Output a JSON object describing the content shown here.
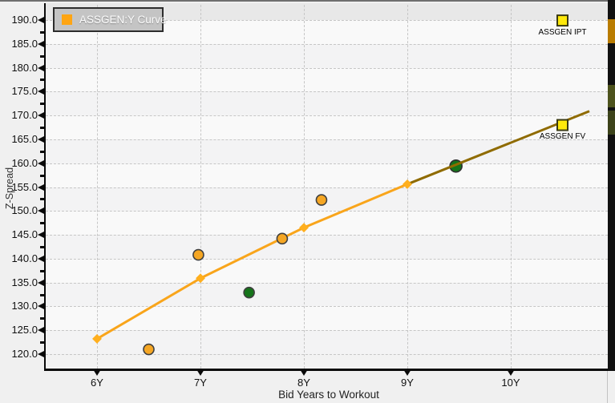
{
  "chart_data": {
    "type": "scatter",
    "title": "",
    "xlabel": "Bid Years to Workout",
    "ylabel": "Z-Spread",
    "grid": "dashed",
    "legend_position": "top-left",
    "legend": [
      {
        "label": "ASSGEN:Y Curve",
        "color": "#FFA513"
      }
    ],
    "x_ticks": [
      {
        "value": 6,
        "label": "6Y"
      },
      {
        "value": 7,
        "label": "7Y"
      },
      {
        "value": 8,
        "label": "8Y"
      },
      {
        "value": 9,
        "label": "9Y"
      },
      {
        "value": 10,
        "label": "10Y"
      }
    ],
    "y_ticks": [
      {
        "value": 190,
        "label": "190.0"
      },
      {
        "value": 185,
        "label": "185.0"
      },
      {
        "value": 180,
        "label": "180.0"
      },
      {
        "value": 175,
        "label": "175.0"
      },
      {
        "value": 170,
        "label": "170.0"
      },
      {
        "value": 165,
        "label": "165.0"
      },
      {
        "value": 160,
        "label": "160.0"
      },
      {
        "value": 155,
        "label": "155.0"
      },
      {
        "value": 150,
        "label": "150.0"
      },
      {
        "value": 145,
        "label": "145.0"
      },
      {
        "value": 140,
        "label": "140.0"
      },
      {
        "value": 135,
        "label": "135.0"
      },
      {
        "value": 130,
        "label": "130.0"
      },
      {
        "value": 125,
        "label": "125.0"
      },
      {
        "value": 120,
        "label": "120.0"
      }
    ],
    "xlim": [
      5.5,
      10.94
    ],
    "ylim": [
      117,
      193.5
    ],
    "curve": {
      "name": "ASSGEN:Y Curve",
      "color": "#F9A51B",
      "points": [
        {
          "x": 6,
          "y": 123.2
        },
        {
          "x": 7,
          "y": 135.9
        },
        {
          "x": 8,
          "y": 146.5
        },
        {
          "x": 9,
          "y": 155.6
        }
      ],
      "extension": {
        "color": "#8F6B00",
        "points": [
          {
            "x": 9,
            "y": 155.6
          },
          {
            "x": 10.76,
            "y": 170.9
          }
        ]
      }
    },
    "scatter": [
      {
        "x": 6.5,
        "y": 121.0,
        "color": "orange",
        "size": "normal"
      },
      {
        "x": 6.98,
        "y": 140.8,
        "color": "orange",
        "size": "normal"
      },
      {
        "x": 7.47,
        "y": 132.9,
        "color": "green",
        "size": "normal"
      },
      {
        "x": 7.79,
        "y": 144.2,
        "color": "orange",
        "size": "normal"
      },
      {
        "x": 8.17,
        "y": 152.3,
        "color": "orange",
        "size": "normal"
      },
      {
        "x": 9.47,
        "y": 159.4,
        "color": "green",
        "size": "large"
      }
    ],
    "point_colors": {
      "orange": "#F5A623",
      "green": "#15741A"
    },
    "markers": [
      {
        "label": "ASSGEN IPT",
        "x": 10.5,
        "y": 189.9,
        "color": "#FFE90A"
      },
      {
        "label": "ASSGEN FV",
        "x": 10.5,
        "y": 168.0,
        "color": "#FFE90A"
      }
    ]
  }
}
